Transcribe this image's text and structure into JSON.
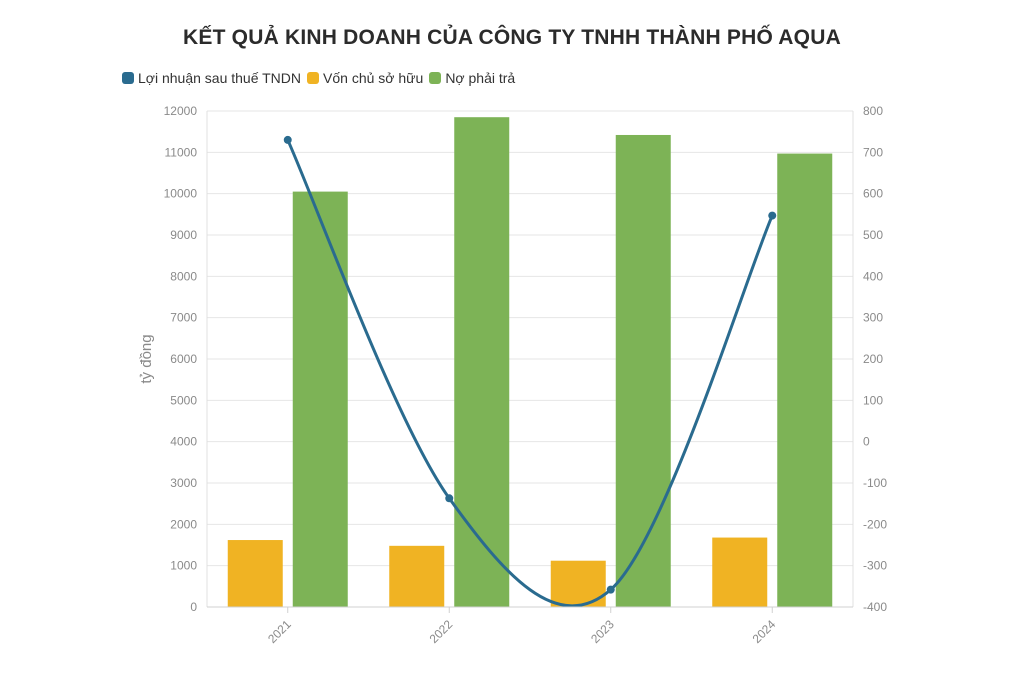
{
  "chart_data": {
    "title": "KẾT QUẢ KINH DOANH CỦA CÔNG TY TNHH THÀNH PHỐ AQUA",
    "type": "bar",
    "categories": [
      "2021",
      "2022",
      "2023",
      "2024"
    ],
    "ylabel": "tỷ đồng",
    "ylim": [
      0,
      12000
    ],
    "y2lim": [
      -400,
      800
    ],
    "y_ticks": [
      0,
      1000,
      2000,
      3000,
      4000,
      5000,
      6000,
      7000,
      8000,
      9000,
      10000,
      11000,
      12000
    ],
    "y2_ticks": [
      -400,
      -300,
      -200,
      -100,
      0,
      100,
      200,
      300,
      400,
      500,
      600,
      700,
      800
    ],
    "grid": true,
    "legend_position": "top-left",
    "series": [
      {
        "name": "Lợi nhuận sau thuế TNDN",
        "type": "line",
        "axis": "right",
        "color": "#2a6b8f",
        "values": [
          730,
          -137,
          -358,
          547
        ]
      },
      {
        "name": "Vốn chủ sở hữu",
        "type": "bar",
        "axis": "left",
        "color": "#f0b323",
        "values": [
          1620,
          1480,
          1120,
          1680
        ]
      },
      {
        "name": "Nợ phải trả",
        "type": "bar",
        "axis": "left",
        "color": "#7db356",
        "values": [
          10050,
          11850,
          11420,
          10970
        ]
      }
    ]
  }
}
